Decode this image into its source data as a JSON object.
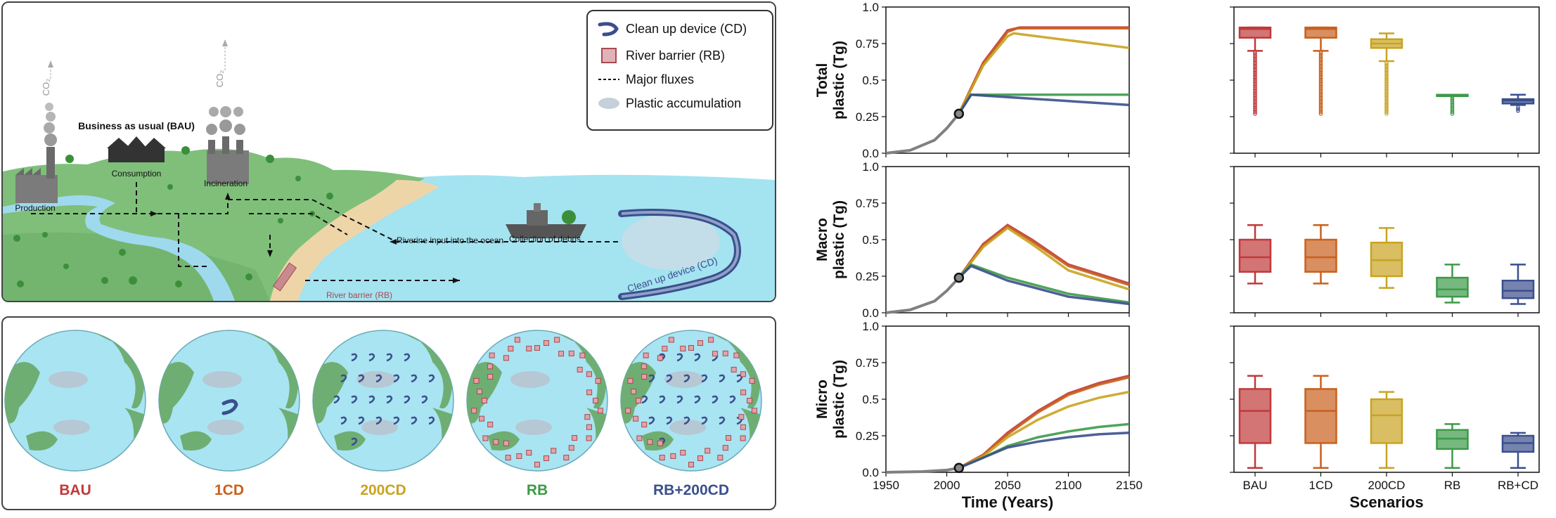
{
  "scene": {
    "labels": {
      "bau": "Business as usual (BAU)",
      "co2": "CO₂",
      "production": "Production",
      "consumption": "Consumption",
      "incineration": "Incineration",
      "collection": "Collection of debris",
      "riverine": "Riverine input into the ocean",
      "river_barrier": "River barrier (RB)",
      "cleanup_device": "Clean up device (CD)"
    },
    "legend": [
      {
        "icon": "cleanup-device-icon",
        "label": "Clean up device (CD)"
      },
      {
        "icon": "river-barrier-icon",
        "label": "River barrier (RB)"
      },
      {
        "icon": "dashed-line-icon",
        "label": "Major fluxes"
      },
      {
        "icon": "accumulation-icon",
        "label": "Plastic accumulation"
      }
    ]
  },
  "scenarios": [
    {
      "label": "BAU",
      "color": "#c0393b"
    },
    {
      "label": "1CD",
      "color": "#c9601c"
    },
    {
      "label": "200CD",
      "color": "#c9a321"
    },
    {
      "label": "RB",
      "color": "#3c9a48"
    },
    {
      "label": "RB+200CD",
      "color": "#3a4f8c"
    }
  ],
  "chart_data": [
    {
      "type": "line",
      "ylabel": "Total plastic (Tg)",
      "xlim": [
        1950,
        2150
      ],
      "ylim": [
        0,
        1.0
      ],
      "yticks": [
        "0.0",
        "0.25",
        "0.5",
        "0.75",
        "1.0"
      ],
      "xticks": [],
      "marker": {
        "x": 2010,
        "y": 0.27
      },
      "history": [
        [
          1950,
          0.0
        ],
        [
          1970,
          0.02
        ],
        [
          1990,
          0.09
        ],
        [
          2000,
          0.17
        ],
        [
          2010,
          0.27
        ]
      ],
      "series": [
        {
          "name": "BAU",
          "color": "#c0393b",
          "values": [
            [
              2010,
              0.27
            ],
            [
              2030,
              0.62
            ],
            [
              2050,
              0.84
            ],
            [
              2060,
              0.86
            ],
            [
              2150,
              0.86
            ]
          ]
        },
        {
          "name": "1CD",
          "color": "#c9601c",
          "values": [
            [
              2010,
              0.27
            ],
            [
              2030,
              0.61
            ],
            [
              2050,
              0.83
            ],
            [
              2058,
              0.855
            ],
            [
              2150,
              0.855
            ]
          ]
        },
        {
          "name": "200CD",
          "color": "#c9a321",
          "values": [
            [
              2010,
              0.27
            ],
            [
              2030,
              0.6
            ],
            [
              2050,
              0.8
            ],
            [
              2055,
              0.82
            ],
            [
              2150,
              0.72
            ]
          ]
        },
        {
          "name": "RB",
          "color": "#3c9a48",
          "values": [
            [
              2010,
              0.27
            ],
            [
              2020,
              0.4
            ],
            [
              2150,
              0.4
            ]
          ]
        },
        {
          "name": "RB+200CD",
          "color": "#3a4f8c",
          "values": [
            [
              2010,
              0.27
            ],
            [
              2020,
              0.4
            ],
            [
              2150,
              0.33
            ]
          ]
        }
      ]
    },
    {
      "type": "line",
      "ylabel": "Macro plastic (Tg)",
      "xlim": [
        1950,
        2150
      ],
      "ylim": [
        0,
        1.0
      ],
      "yticks": [
        "0.0",
        "0.25",
        "0.5",
        "0.75",
        "1.0"
      ],
      "xticks": [],
      "marker": {
        "x": 2010,
        "y": 0.24
      },
      "history": [
        [
          1950,
          0.0
        ],
        [
          1970,
          0.02
        ],
        [
          1990,
          0.08
        ],
        [
          2000,
          0.15
        ],
        [
          2010,
          0.24
        ]
      ],
      "series": [
        {
          "name": "BAU",
          "color": "#c0393b",
          "values": [
            [
              2010,
              0.24
            ],
            [
              2030,
              0.47
            ],
            [
              2050,
              0.6
            ],
            [
              2070,
              0.5
            ],
            [
              2100,
              0.33
            ],
            [
              2150,
              0.2
            ]
          ]
        },
        {
          "name": "1CD",
          "color": "#c9601c",
          "values": [
            [
              2010,
              0.24
            ],
            [
              2030,
              0.46
            ],
            [
              2050,
              0.59
            ],
            [
              2070,
              0.49
            ],
            [
              2100,
              0.32
            ],
            [
              2150,
              0.19
            ]
          ]
        },
        {
          "name": "200CD",
          "color": "#c9a321",
          "values": [
            [
              2010,
              0.24
            ],
            [
              2030,
              0.45
            ],
            [
              2050,
              0.58
            ],
            [
              2070,
              0.47
            ],
            [
              2100,
              0.29
            ],
            [
              2150,
              0.16
            ]
          ]
        },
        {
          "name": "RB",
          "color": "#3c9a48",
          "values": [
            [
              2010,
              0.24
            ],
            [
              2020,
              0.33
            ],
            [
              2050,
              0.24
            ],
            [
              2100,
              0.13
            ],
            [
              2150,
              0.07
            ]
          ]
        },
        {
          "name": "RB+200CD",
          "color": "#3a4f8c",
          "values": [
            [
              2010,
              0.24
            ],
            [
              2020,
              0.32
            ],
            [
              2050,
              0.22
            ],
            [
              2100,
              0.11
            ],
            [
              2150,
              0.06
            ]
          ]
        }
      ]
    },
    {
      "type": "line",
      "ylabel": "Micro plastic (Tg)",
      "xlabel": "Time (Years)",
      "xlim": [
        1950,
        2150
      ],
      "ylim": [
        0,
        1.0
      ],
      "yticks": [
        "0.0",
        "0.25",
        "0.5",
        "0.75",
        "1.0"
      ],
      "xticks": [
        "1950",
        "2000",
        "2050",
        "2100",
        "2150"
      ],
      "marker": {
        "x": 2010,
        "y": 0.03
      },
      "history": [
        [
          1950,
          0.0
        ],
        [
          1980,
          0.005
        ],
        [
          2000,
          0.015
        ],
        [
          2010,
          0.03
        ]
      ],
      "series": [
        {
          "name": "BAU",
          "color": "#c0393b",
          "values": [
            [
              2010,
              0.03
            ],
            [
              2030,
              0.12
            ],
            [
              2050,
              0.27
            ],
            [
              2075,
              0.42
            ],
            [
              2100,
              0.54
            ],
            [
              2125,
              0.61
            ],
            [
              2150,
              0.66
            ]
          ]
        },
        {
          "name": "1CD",
          "color": "#c9601c",
          "values": [
            [
              2010,
              0.03
            ],
            [
              2030,
              0.12
            ],
            [
              2050,
              0.26
            ],
            [
              2075,
              0.41
            ],
            [
              2100,
              0.53
            ],
            [
              2125,
              0.6
            ],
            [
              2150,
              0.65
            ]
          ]
        },
        {
          "name": "200CD",
          "color": "#c9a321",
          "values": [
            [
              2010,
              0.03
            ],
            [
              2030,
              0.11
            ],
            [
              2050,
              0.24
            ],
            [
              2075,
              0.36
            ],
            [
              2100,
              0.45
            ],
            [
              2125,
              0.51
            ],
            [
              2150,
              0.55
            ]
          ]
        },
        {
          "name": "RB",
          "color": "#3c9a48",
          "values": [
            [
              2010,
              0.03
            ],
            [
              2030,
              0.1
            ],
            [
              2050,
              0.18
            ],
            [
              2075,
              0.24
            ],
            [
              2100,
              0.28
            ],
            [
              2125,
              0.31
            ],
            [
              2150,
              0.33
            ]
          ]
        },
        {
          "name": "RB+200CD",
          "color": "#3a4f8c",
          "values": [
            [
              2010,
              0.03
            ],
            [
              2030,
              0.1
            ],
            [
              2050,
              0.17
            ],
            [
              2075,
              0.21
            ],
            [
              2100,
              0.24
            ],
            [
              2125,
              0.26
            ],
            [
              2150,
              0.27
            ]
          ]
        }
      ]
    },
    {
      "type": "box",
      "ylim": [
        0,
        1.0
      ],
      "categories": [
        "BAU",
        "1CD",
        "200CD",
        "RB",
        "RB+200CD"
      ],
      "xticks": [],
      "boxes": [
        {
          "min": 0.27,
          "q1": 0.79,
          "median": 0.85,
          "q3": 0.86,
          "max": 0.86,
          "wlow": 0.7,
          "fliers": true
        },
        {
          "min": 0.27,
          "q1": 0.79,
          "median": 0.85,
          "q3": 0.86,
          "max": 0.86,
          "wlow": 0.7,
          "fliers": true
        },
        {
          "min": 0.27,
          "q1": 0.72,
          "median": 0.75,
          "q3": 0.78,
          "max": 0.82,
          "wlow": 0.63,
          "fliers": true
        },
        {
          "min": 0.27,
          "q1": 0.4,
          "median": 0.4,
          "q3": 0.4,
          "max": 0.4,
          "wlow": 0.4,
          "fliers": true
        },
        {
          "min": 0.29,
          "q1": 0.34,
          "median": 0.36,
          "q3": 0.37,
          "max": 0.4,
          "wlow": 0.33,
          "fliers": true
        }
      ]
    },
    {
      "type": "box",
      "ylim": [
        0,
        1.0
      ],
      "categories": [
        "BAU",
        "1CD",
        "200CD",
        "RB",
        "RB+200CD"
      ],
      "xticks": [],
      "boxes": [
        {
          "min": 0.2,
          "q1": 0.28,
          "median": 0.38,
          "q3": 0.5,
          "max": 0.6
        },
        {
          "min": 0.2,
          "q1": 0.28,
          "median": 0.38,
          "q3": 0.5,
          "max": 0.6
        },
        {
          "min": 0.17,
          "q1": 0.25,
          "median": 0.36,
          "q3": 0.48,
          "max": 0.58
        },
        {
          "min": 0.07,
          "q1": 0.11,
          "median": 0.16,
          "q3": 0.24,
          "max": 0.33
        },
        {
          "min": 0.06,
          "q1": 0.1,
          "median": 0.15,
          "q3": 0.22,
          "max": 0.33
        }
      ]
    },
    {
      "type": "box",
      "ylim": [
        0,
        1.0
      ],
      "xlabel": "Scenarios",
      "categories": [
        "BAU",
        "1CD",
        "200CD",
        "RB",
        "RB+200CD"
      ],
      "xticks": [
        "BAU",
        "1CD",
        "200CD",
        "RB",
        "RB+CD"
      ],
      "boxes": [
        {
          "min": 0.03,
          "q1": 0.2,
          "median": 0.42,
          "q3": 0.57,
          "max": 0.66
        },
        {
          "min": 0.03,
          "q1": 0.2,
          "median": 0.42,
          "q3": 0.57,
          "max": 0.66
        },
        {
          "min": 0.03,
          "q1": 0.2,
          "median": 0.39,
          "q3": 0.5,
          "max": 0.55
        },
        {
          "min": 0.03,
          "q1": 0.16,
          "median": 0.23,
          "q3": 0.29,
          "max": 0.33
        },
        {
          "min": 0.03,
          "q1": 0.14,
          "median": 0.2,
          "q3": 0.25,
          "max": 0.27
        }
      ]
    }
  ]
}
